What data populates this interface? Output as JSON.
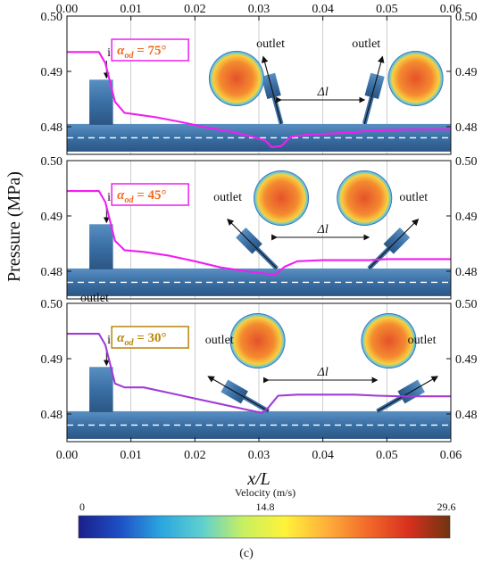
{
  "figure_label": "(c)",
  "chart_data": {
    "type": "line",
    "ylabel": "Pressure (MPa)",
    "xlabel": "x/L",
    "xlim": [
      0,
      0.06
    ],
    "ylim": [
      0.475,
      0.5
    ],
    "x_ticks": [
      "0.00",
      "0.01",
      "0.02",
      "0.03",
      "0.04",
      "0.05",
      "0.06"
    ],
    "y_ticks": [
      "0.48",
      "0.49",
      "0.50"
    ],
    "grid": "vertical",
    "panels": [
      {
        "alpha_symbol": "α",
        "alpha_sub": "od",
        "alpha_value": " = 75°",
        "color": "#f01ef0",
        "label_color": "#f26b1d",
        "outlet1_x": 0.0335,
        "outlet2_x": 0.0465,
        "labels": {
          "inlet": "inlet",
          "outlet_left": "outlet",
          "outlet_right": "outlet",
          "delta_l": "Δl"
        },
        "x": [
          0,
          0.005,
          0.006,
          0.0075,
          0.009,
          0.011,
          0.014,
          0.018,
          0.022,
          0.026,
          0.029,
          0.031,
          0.032,
          0.0335,
          0.035,
          0.038,
          0.042,
          0.045,
          0.0465,
          0.05,
          0.055,
          0.06
        ],
        "y": [
          0.4935,
          0.4935,
          0.4915,
          0.4845,
          0.4825,
          0.4822,
          0.4817,
          0.4808,
          0.4798,
          0.479,
          0.4782,
          0.4775,
          0.4763,
          0.4765,
          0.4782,
          0.4786,
          0.4788,
          0.479,
          0.4792,
          0.4794,
          0.4795,
          0.4795
        ]
      },
      {
        "alpha_symbol": "α",
        "alpha_sub": "od",
        "alpha_value": " = 45°",
        "color": "#f01ef0",
        "label_color": "#f26b1d",
        "outlet1_x": 0.0328,
        "outlet2_x": 0.0472,
        "labels": {
          "inlet": "inlet",
          "outlet_left": "outlet",
          "outlet_right": "outlet",
          "delta_l": "Δl"
        },
        "x": [
          0,
          0.005,
          0.006,
          0.0075,
          0.009,
          0.012,
          0.016,
          0.02,
          0.024,
          0.028,
          0.031,
          0.0325,
          0.034,
          0.036,
          0.04,
          0.044,
          0.0472,
          0.05,
          0.055,
          0.06
        ],
        "y": [
          0.4945,
          0.4945,
          0.4925,
          0.4855,
          0.4838,
          0.4835,
          0.4828,
          0.4818,
          0.4807,
          0.48,
          0.4796,
          0.4793,
          0.4808,
          0.4818,
          0.482,
          0.482,
          0.482,
          0.4822,
          0.4822,
          0.4822
        ]
      },
      {
        "alpha_symbol": "α",
        "alpha_sub": "od",
        "alpha_value": " = 30°",
        "color": "#a13bd6",
        "label_color": "#b8860b",
        "outlet1_x": 0.0315,
        "outlet2_x": 0.0485,
        "labels": {
          "inlet": "inlet",
          "outlet_left": "outlet",
          "outlet_right": "outlet",
          "outlet_top": "outlet",
          "delta_l": "Δl"
        },
        "x": [
          0,
          0.005,
          0.006,
          0.0075,
          0.009,
          0.012,
          0.016,
          0.02,
          0.024,
          0.028,
          0.0305,
          0.0315,
          0.033,
          0.036,
          0.04,
          0.045,
          0.0485,
          0.052,
          0.056,
          0.06
        ],
        "y": [
          0.4945,
          0.4945,
          0.4925,
          0.4855,
          0.4848,
          0.4848,
          0.4838,
          0.4828,
          0.4818,
          0.4808,
          0.4802,
          0.4812,
          0.4833,
          0.4835,
          0.4835,
          0.4835,
          0.4833,
          0.4832,
          0.4832,
          0.4832
        ]
      }
    ]
  },
  "colorbar": {
    "title": "Velocity (m/s)",
    "min_label": "0",
    "mid_label": "14.8",
    "max_label": "29.6",
    "min": 0,
    "max": 29.6,
    "mid": 14.8,
    "colors": [
      "#1a1f8a",
      "#1e4fc6",
      "#2ba6e0",
      "#5fd0cf",
      "#c8f060",
      "#fff23a",
      "#ffb03a",
      "#f26a2a",
      "#d8301e",
      "#6e3410"
    ]
  }
}
